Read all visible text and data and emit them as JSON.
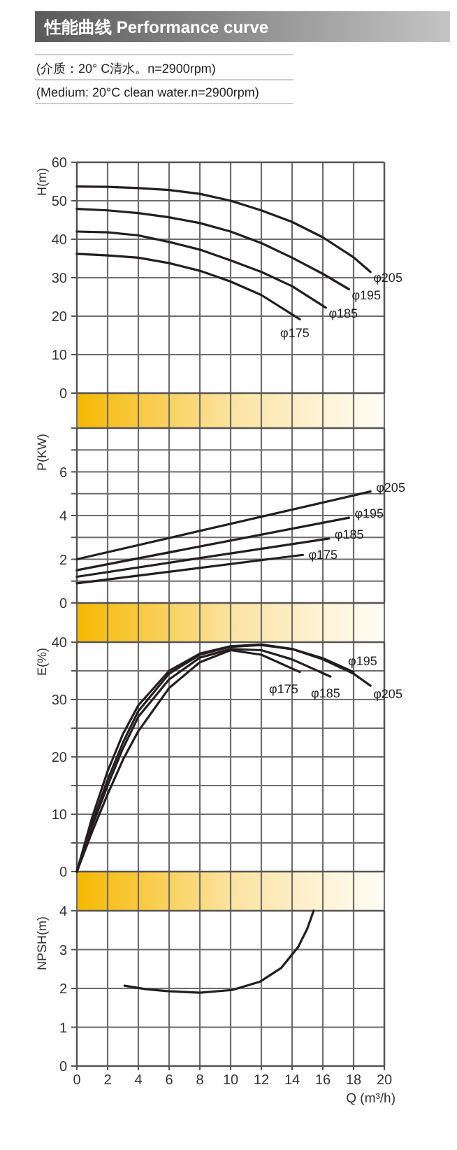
{
  "chart_data": [
    {
      "type": "line",
      "title": "性能曲线 Performance curve",
      "subtitle": "(介质：20° C清水。n=2900rpm)",
      "annotations": [
        "(Medium: 20°C clean water.n=2900rpm)"
      ],
      "ylabel": "H(m)",
      "xlim": [
        0,
        20
      ],
      "xticks": [
        0,
        2,
        4,
        6,
        8,
        10,
        12,
        14,
        16,
        18,
        20
      ],
      "ylim": [
        0,
        60
      ],
      "yticks": [
        0,
        10,
        20,
        30,
        40,
        50,
        60
      ],
      "grid": true,
      "tick_labels": "y",
      "line_style": "solid",
      "series": [
        {
          "name": "φ205",
          "color": "#231f20",
          "x": [
            0,
            2,
            4,
            6,
            8,
            10,
            12,
            14,
            16,
            18,
            19.1
          ],
          "values": [
            53.7,
            53.6,
            53.3,
            52.8,
            51.8,
            50,
            47.5,
            44.5,
            40.5,
            35.3,
            31.5
          ]
        },
        {
          "name": "φ195",
          "color": "#231f20",
          "x": [
            0,
            2,
            4,
            6,
            8,
            10,
            12,
            14,
            16,
            17.7
          ],
          "values": [
            47.9,
            47.5,
            46.8,
            45.7,
            44.2,
            42,
            39,
            35.2,
            31,
            27
          ]
        },
        {
          "name": "φ185",
          "color": "#231f20",
          "x": [
            0,
            2,
            4,
            6,
            8,
            10,
            12,
            14,
            16.2
          ],
          "values": [
            42,
            41.8,
            41,
            39.3,
            37.3,
            34.5,
            31.5,
            27.8,
            22.2
          ]
        },
        {
          "name": "φ175",
          "color": "#231f20",
          "x": [
            0,
            2,
            4,
            6,
            8,
            10,
            12,
            14.5
          ],
          "values": [
            36.2,
            35.8,
            35.2,
            33.8,
            31.8,
            29,
            25.5,
            19.2
          ]
        }
      ]
    },
    {
      "type": "line",
      "ylabel": "P(KW)",
      "xlim": [
        0,
        20
      ],
      "xticks": [
        0,
        2,
        4,
        6,
        8,
        10,
        12,
        14,
        16,
        18,
        20
      ],
      "ylim": [
        0,
        8
      ],
      "yticks": [
        0,
        {
          "value": 1,
          "label": null
        },
        2,
        {
          "value": 3,
          "label": null
        },
        4,
        {
          "value": 5,
          "label": null
        },
        6,
        {
          "value": 7,
          "label": null
        },
        {
          "value": 8,
          "label": null
        }
      ],
      "grid": true,
      "tick_labels": "y",
      "line_style": "solid",
      "series": [
        {
          "name": "φ205",
          "color": "#231f20",
          "x": [
            0,
            19.1
          ],
          "values": [
            2.0,
            5.1
          ]
        },
        {
          "name": "φ195",
          "color": "#231f20",
          "x": [
            0,
            17.7
          ],
          "values": [
            1.5,
            3.9
          ]
        },
        {
          "name": "φ185",
          "color": "#231f20",
          "x": [
            0,
            16.4
          ],
          "values": [
            1.2,
            2.95
          ]
        },
        {
          "name": "φ175",
          "color": "#231f20",
          "x": [
            0,
            14.7
          ],
          "values": [
            0.9,
            2.2
          ]
        }
      ]
    },
    {
      "type": "line",
      "ylabel": "E(%)",
      "xlim": [
        0,
        20
      ],
      "xticks": [
        0,
        2,
        4,
        6,
        8,
        10,
        12,
        14,
        16,
        18,
        20
      ],
      "ylim": [
        0,
        40
      ],
      "yticks": [
        0,
        {
          "value": 5,
          "label": null
        },
        10,
        {
          "value": 15,
          "label": null
        },
        20,
        {
          "value": 25,
          "label": null
        },
        30,
        {
          "value": 35,
          "label": null
        },
        40
      ],
      "grid": true,
      "tick_labels": "y",
      "line_style": "solid",
      "series": [
        {
          "name": "φ205",
          "color": "#231f20",
          "x": [
            0,
            1,
            2,
            3,
            4,
            6,
            8,
            10,
            12,
            14,
            16,
            18,
            19.1
          ],
          "values": [
            0,
            9.5,
            17.5,
            24,
            29,
            35,
            38,
            39.3,
            39.6,
            38.8,
            37,
            34.5,
            32.4
          ]
        },
        {
          "name": "φ195",
          "color": "#231f20",
          "x": [
            0,
            1,
            2,
            3,
            4,
            6,
            8,
            10,
            12,
            14,
            16,
            18
          ],
          "values": [
            0,
            8.5,
            16,
            22.5,
            28,
            34.5,
            37.8,
            39.2,
            39.5,
            38.8,
            37.2,
            34.8
          ]
        },
        {
          "name": "φ185",
          "color": "#231f20",
          "x": [
            0,
            1,
            2,
            3,
            4,
            6,
            8,
            10,
            12,
            14,
            16.5
          ],
          "values": [
            0,
            8,
            15,
            21.5,
            27,
            33.5,
            37.3,
            38.8,
            38.6,
            37,
            34
          ]
        },
        {
          "name": "φ175",
          "color": "#231f20",
          "x": [
            0,
            1,
            2,
            3,
            4,
            6,
            8,
            10,
            12,
            14.5
          ],
          "values": [
            0,
            7,
            13.5,
            19.5,
            24.5,
            32,
            36.5,
            38.6,
            37.8,
            34.8
          ]
        }
      ]
    },
    {
      "type": "line",
      "ylabel": "NPSH(m)",
      "xlabel": "Q (m³/h)",
      "xlim": [
        0,
        20
      ],
      "xticks": [
        0,
        2,
        4,
        6,
        8,
        10,
        12,
        14,
        16,
        18,
        20
      ],
      "ylim": [
        0,
        4
      ],
      "yticks": [
        0,
        1,
        2,
        3,
        4
      ],
      "grid": true,
      "line_style": "solid",
      "series": [
        {
          "color": "#231f20",
          "x": [
            3.1,
            4.5,
            5.9,
            8,
            10.1,
            11.9,
            13.3,
            14.4,
            15,
            15.4
          ],
          "values": [
            2.07,
            1.98,
            1.93,
            1.89,
            1.96,
            2.17,
            2.53,
            3.07,
            3.55,
            4.0
          ]
        }
      ]
    }
  ]
}
